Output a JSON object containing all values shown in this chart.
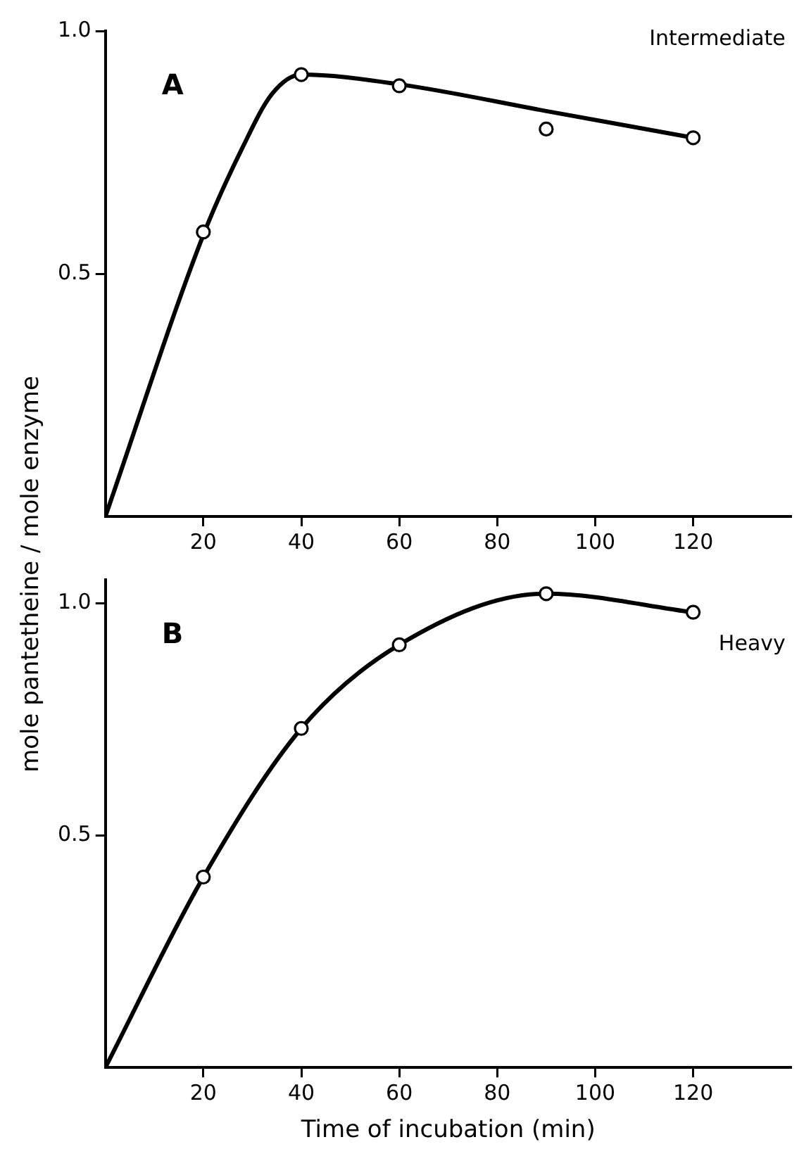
{
  "chart_data": [
    {
      "type": "scatter",
      "ylabel": "mole pantetheine / mole enzyme",
      "annotations": [
        "A",
        "Intermediate"
      ],
      "xlim": [
        0,
        140
      ],
      "xticks": [
        20,
        40,
        60,
        80,
        100,
        120
      ],
      "ylim": [
        0,
        1.0
      ],
      "yticks": [
        0.5,
        {
          "value": 1.0,
          "label": "1.0"
        }
      ],
      "grid": false,
      "legend": false,
      "series": [
        {
          "marker": "circle",
          "color": "#000000",
          "x": [
            20,
            40,
            60,
            90,
            120
          ],
          "values": [
            0.586,
            0.91,
            0.887,
            0.798,
            0.78
          ]
        },
        {
          "type": "line",
          "marker": "none",
          "line_style": "solid",
          "color": "#000000",
          "x": [
            0,
            20,
            28,
            34,
            40,
            60,
            90,
            120
          ],
          "values": [
            0,
            0.58,
            0.76,
            0.87,
            0.91,
            0.89,
            0.835,
            0.78
          ]
        }
      ]
    },
    {
      "type": "scatter",
      "xlabel": "Time of incubation (min)",
      "annotations": [
        "B",
        "Heavy"
      ],
      "xlim": [
        0,
        140
      ],
      "xticks": [
        20,
        40,
        60,
        80,
        100,
        120
      ],
      "ylim": [
        0,
        1.05
      ],
      "yticks": [
        0.5,
        {
          "value": 1.0,
          "label": "1.0"
        }
      ],
      "grid": false,
      "legend": false,
      "series": [
        {
          "marker": "circle",
          "color": "#000000",
          "x": [
            20,
            40,
            60,
            90,
            120
          ],
          "values": [
            0.41,
            0.73,
            0.91,
            1.02,
            0.98
          ]
        },
        {
          "type": "line",
          "marker": "none",
          "line_style": "solid",
          "color": "#000000",
          "x": [
            0,
            20,
            40,
            60,
            90,
            120
          ],
          "values": [
            0,
            0.41,
            0.73,
            0.91,
            1.02,
            0.98
          ]
        }
      ]
    }
  ]
}
